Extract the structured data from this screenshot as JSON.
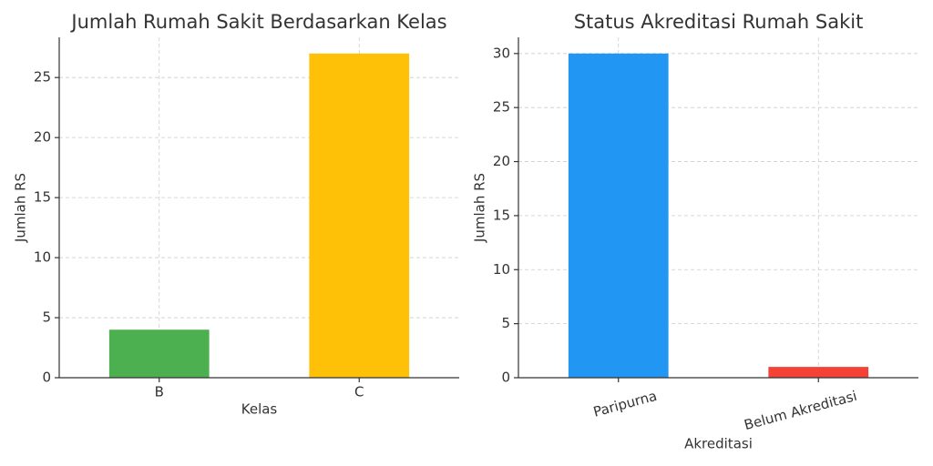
{
  "chart_data": [
    {
      "type": "bar",
      "title": "Jumlah Rumah Sakit Berdasarkan Kelas",
      "x_label": "Kelas",
      "y_label": "Jumlah RS",
      "categories": [
        "B",
        "C"
      ],
      "values": [
        4,
        27
      ],
      "colors": [
        "#4caf50",
        "#ffc107"
      ],
      "ylim": [
        0,
        28.35
      ],
      "yticks": [
        0,
        5,
        10,
        15,
        20,
        25
      ],
      "grid": true,
      "x_label_rotation": 0
    },
    {
      "type": "bar",
      "title": "Status Akreditasi Rumah Sakit",
      "x_label": "Akreditasi",
      "y_label": "Jumlah RS",
      "categories": [
        "Paripurna",
        "Belum Akreditasi"
      ],
      "values": [
        30,
        1
      ],
      "colors": [
        "#2196f3",
        "#f44336"
      ],
      "ylim": [
        0,
        31.5
      ],
      "yticks": [
        0,
        5,
        10,
        15,
        20,
        25,
        30
      ],
      "grid": true,
      "x_label_rotation": -15
    }
  ]
}
